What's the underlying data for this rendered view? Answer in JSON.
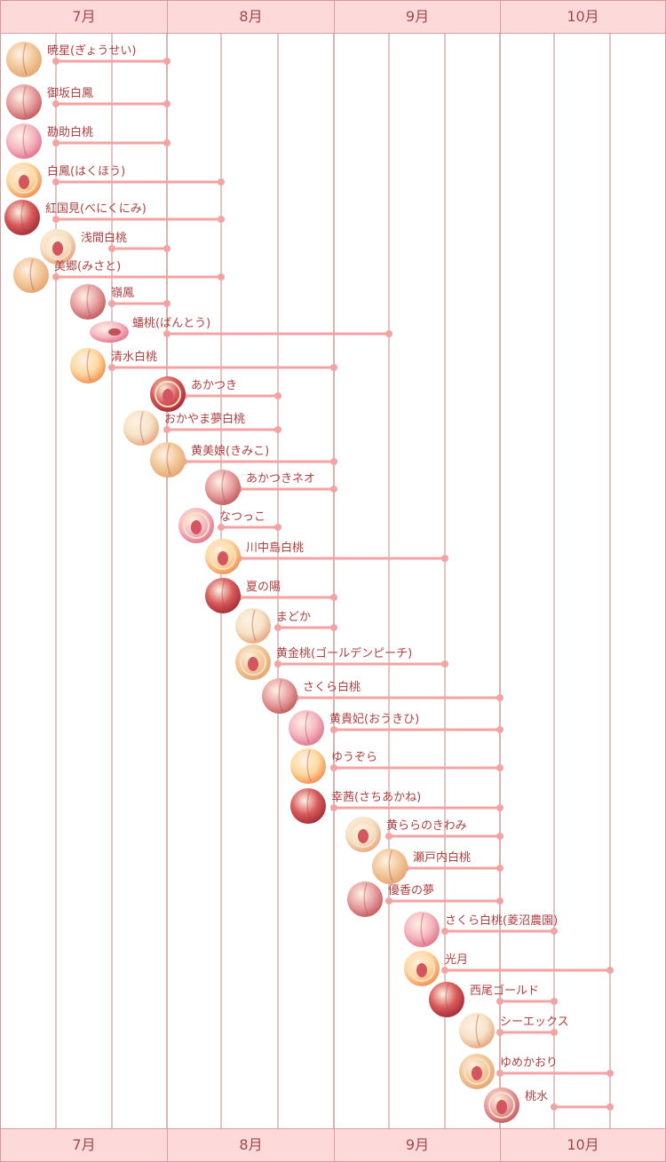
{
  "months": [
    "7月",
    "8月",
    "9月",
    "10月"
  ],
  "colors": {
    "header_bg": "#fdd9d9",
    "header_text": "#a04848",
    "gridline": "#c48a8a",
    "bar": "#f4a3a3",
    "label": "#b04040"
  },
  "varieties": [
    {
      "name": "暁星(ぎょうせい)",
      "start": "7月上旬",
      "end": "7月下旬",
      "icon": "peach-whole-icon"
    },
    {
      "name": "御坂白鳳",
      "start": "7月上旬",
      "end": "7月下旬",
      "icon": "peach-whole-icon"
    },
    {
      "name": "勘助白桃",
      "start": "7月上旬",
      "end": "7月下旬",
      "icon": "peach-whole-icon"
    },
    {
      "name": "白鳳(はくほう)",
      "start": "7月上旬",
      "end": "8月上旬",
      "icon": "peach-halved-icon"
    },
    {
      "name": "紅国見(べにくにみ)",
      "start": "7月上旬",
      "end": "8月上旬",
      "icon": "peach-whole-icon"
    },
    {
      "name": "浅間白桃",
      "start": "7月中旬",
      "end": "7月下旬",
      "icon": "peach-halved-icon"
    },
    {
      "name": "美郷(みさと)",
      "start": "7月上旬",
      "end": "8月上旬",
      "icon": "peach-whole-icon"
    },
    {
      "name": "嶺鳳",
      "start": "7月中旬",
      "end": "7月下旬",
      "icon": "peach-whole-icon"
    },
    {
      "name": "蟠桃(ばんとう)",
      "start": "7月下旬",
      "end": "9月上旬",
      "icon": "flat-peach-icon"
    },
    {
      "name": "清水白桃",
      "start": "7月中旬",
      "end": "8月下旬",
      "icon": "peach-whole-icon"
    },
    {
      "name": "あかつき",
      "start": "7月下旬",
      "end": "8月中旬",
      "icon": "peach-halved-icon"
    },
    {
      "name": "おかやま夢白桃",
      "start": "7月下旬",
      "end": "8月中旬",
      "icon": "peach-whole-icon"
    },
    {
      "name": "黄美娘(きみこ)",
      "start": "7月下旬",
      "end": "8月下旬",
      "icon": "peach-whole-icon"
    },
    {
      "name": "あかつきネオ",
      "start": "8月上旬",
      "end": "8月下旬",
      "icon": "peach-whole-icon"
    },
    {
      "name": "なつっこ",
      "start": "8月上旬",
      "end": "8月中旬",
      "icon": "peach-halved-icon"
    },
    {
      "name": "川中島白桃",
      "start": "8月上旬",
      "end": "9月中旬",
      "icon": "peach-halved-icon"
    },
    {
      "name": "夏の陽",
      "start": "8月上旬",
      "end": "8月下旬",
      "icon": "peach-whole-icon"
    },
    {
      "name": "まどか",
      "start": "8月中旬",
      "end": "8月下旬",
      "icon": "peach-whole-icon"
    },
    {
      "name": "黄金桃(ゴールデンピーチ)",
      "start": "8月中旬",
      "end": "9月中旬",
      "icon": "peach-halved-icon"
    },
    {
      "name": "さくら白桃",
      "start": "8月中旬",
      "end": "9月下旬",
      "icon": "peach-whole-icon"
    },
    {
      "name": "黄貴妃(おうきひ)",
      "start": "8月下旬",
      "end": "9月下旬",
      "icon": "peach-whole-icon"
    },
    {
      "name": "ゆうぞら",
      "start": "8月下旬",
      "end": "9月下旬",
      "icon": "peach-whole-icon"
    },
    {
      "name": "幸茜(さちあかね)",
      "start": "8月下旬",
      "end": "9月下旬",
      "icon": "peach-whole-icon"
    },
    {
      "name": "黄ららのきわみ",
      "start": "9月上旬",
      "end": "9月下旬",
      "icon": "peach-halved-icon"
    },
    {
      "name": "瀬戸内白桃",
      "start": "9月上旬",
      "end": "9月下旬",
      "icon": "peach-whole-icon"
    },
    {
      "name": "優香の夢",
      "start": "9月上旬",
      "end": "9月下旬",
      "icon": "peach-whole-icon"
    },
    {
      "name": "さくら白桃(菱沼農園)",
      "start": "9月中旬",
      "end": "10月上旬",
      "icon": "peach-whole-icon"
    },
    {
      "name": "光月",
      "start": "9月中旬",
      "end": "10月中旬",
      "icon": "peach-halved-icon"
    },
    {
      "name": "西尾ゴールド",
      "start": "9月下旬",
      "end": "10月上旬",
      "icon": "peach-whole-icon"
    },
    {
      "name": "シーエックス",
      "start": "9月下旬",
      "end": "10月上旬",
      "icon": "peach-whole-icon"
    },
    {
      "name": "ゆめかおり",
      "start": "9月下旬",
      "end": "10月中旬",
      "icon": "peach-halved-icon"
    },
    {
      "name": "桃水",
      "start": "10月上旬",
      "end": "10月中旬",
      "icon": "peach-halved-icon"
    }
  ]
}
